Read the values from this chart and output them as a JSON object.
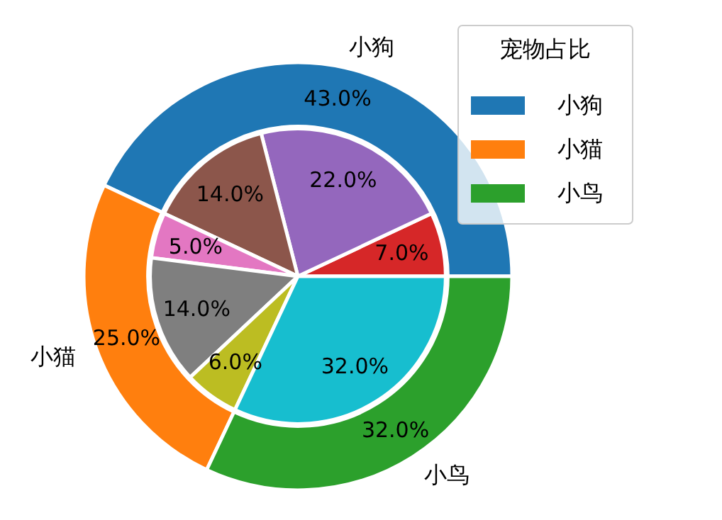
{
  "chart_data": [
    {
      "type": "donut",
      "legend_title": "宠物占比",
      "legend": "top right",
      "categories": [
        "小狗",
        "小猫",
        "小鸟"
      ],
      "values": [
        43,
        25,
        32
      ],
      "colors": [
        "#1f77b4",
        "#ff7f0e",
        "#2ca02c"
      ],
      "value_labels": [
        "43.0%",
        "25.0%",
        "32.0%"
      ]
    },
    {
      "type": "pie",
      "categories": [
        null,
        null,
        null,
        null,
        null,
        null,
        null
      ],
      "values": [
        7,
        22,
        14,
        5,
        14,
        6,
        32
      ],
      "colors": [
        "#d62728",
        "#9467bd",
        "#8c564b",
        "#e377c2",
        "#7f7f7f",
        "#bcbd22",
        "#17becf"
      ],
      "value_labels": [
        "7.0%",
        "22.0%",
        "14.0%",
        "5.0%",
        "14.0%",
        "6.0%",
        "32.0%"
      ]
    }
  ]
}
